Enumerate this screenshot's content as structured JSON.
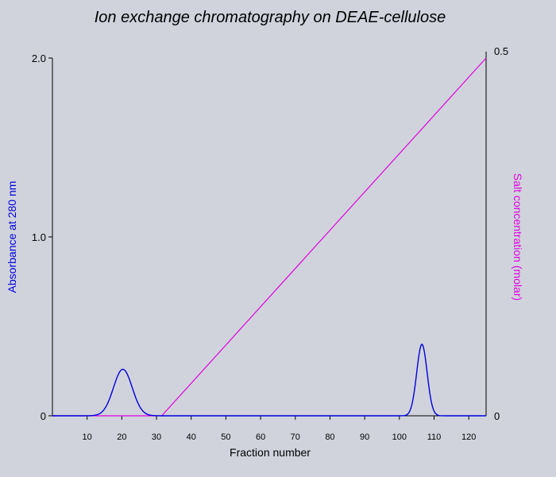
{
  "chart_data": {
    "type": "line",
    "title": "Ion exchange chromatography on DEAE-cellulose",
    "xlabel": "Fraction number",
    "ylabel_left": "Absorbance at 280 nm",
    "ylabel_right": "Salt concentration (molar)",
    "xlim": [
      0,
      125
    ],
    "ylim_left": [
      0,
      2.0
    ],
    "ylim_right": [
      0,
      0.5
    ],
    "x_ticks": [
      10,
      20,
      30,
      40,
      50,
      60,
      70,
      80,
      90,
      100,
      110,
      120
    ],
    "y_left_ticks": [
      {
        "value": 0,
        "label": "0"
      },
      {
        "value": 1.0,
        "label": "1.0"
      },
      {
        "value": 2.0,
        "label": "2.0"
      }
    ],
    "y_right_ticks": [
      {
        "value": 0,
        "label": "0"
      },
      {
        "value": 0.5,
        "label": "0.5"
      }
    ],
    "series": [
      {
        "axis": "left",
        "color": "#0000dd",
        "peaks": [
          {
            "center": 20.3,
            "height": 0.26,
            "sigma": 2.7
          },
          {
            "center": 106.5,
            "height": 0.4,
            "sigma": 1.5
          }
        ]
      },
      {
        "axis": "right",
        "color": "#e000e0",
        "points": [
          [
            0,
            0
          ],
          [
            31.5,
            0
          ],
          [
            125,
            0.5
          ]
        ]
      }
    ],
    "colors": {
      "background": "#d0d3dc",
      "absorbance": "#0000dd",
      "salt": "#e000e0"
    }
  }
}
